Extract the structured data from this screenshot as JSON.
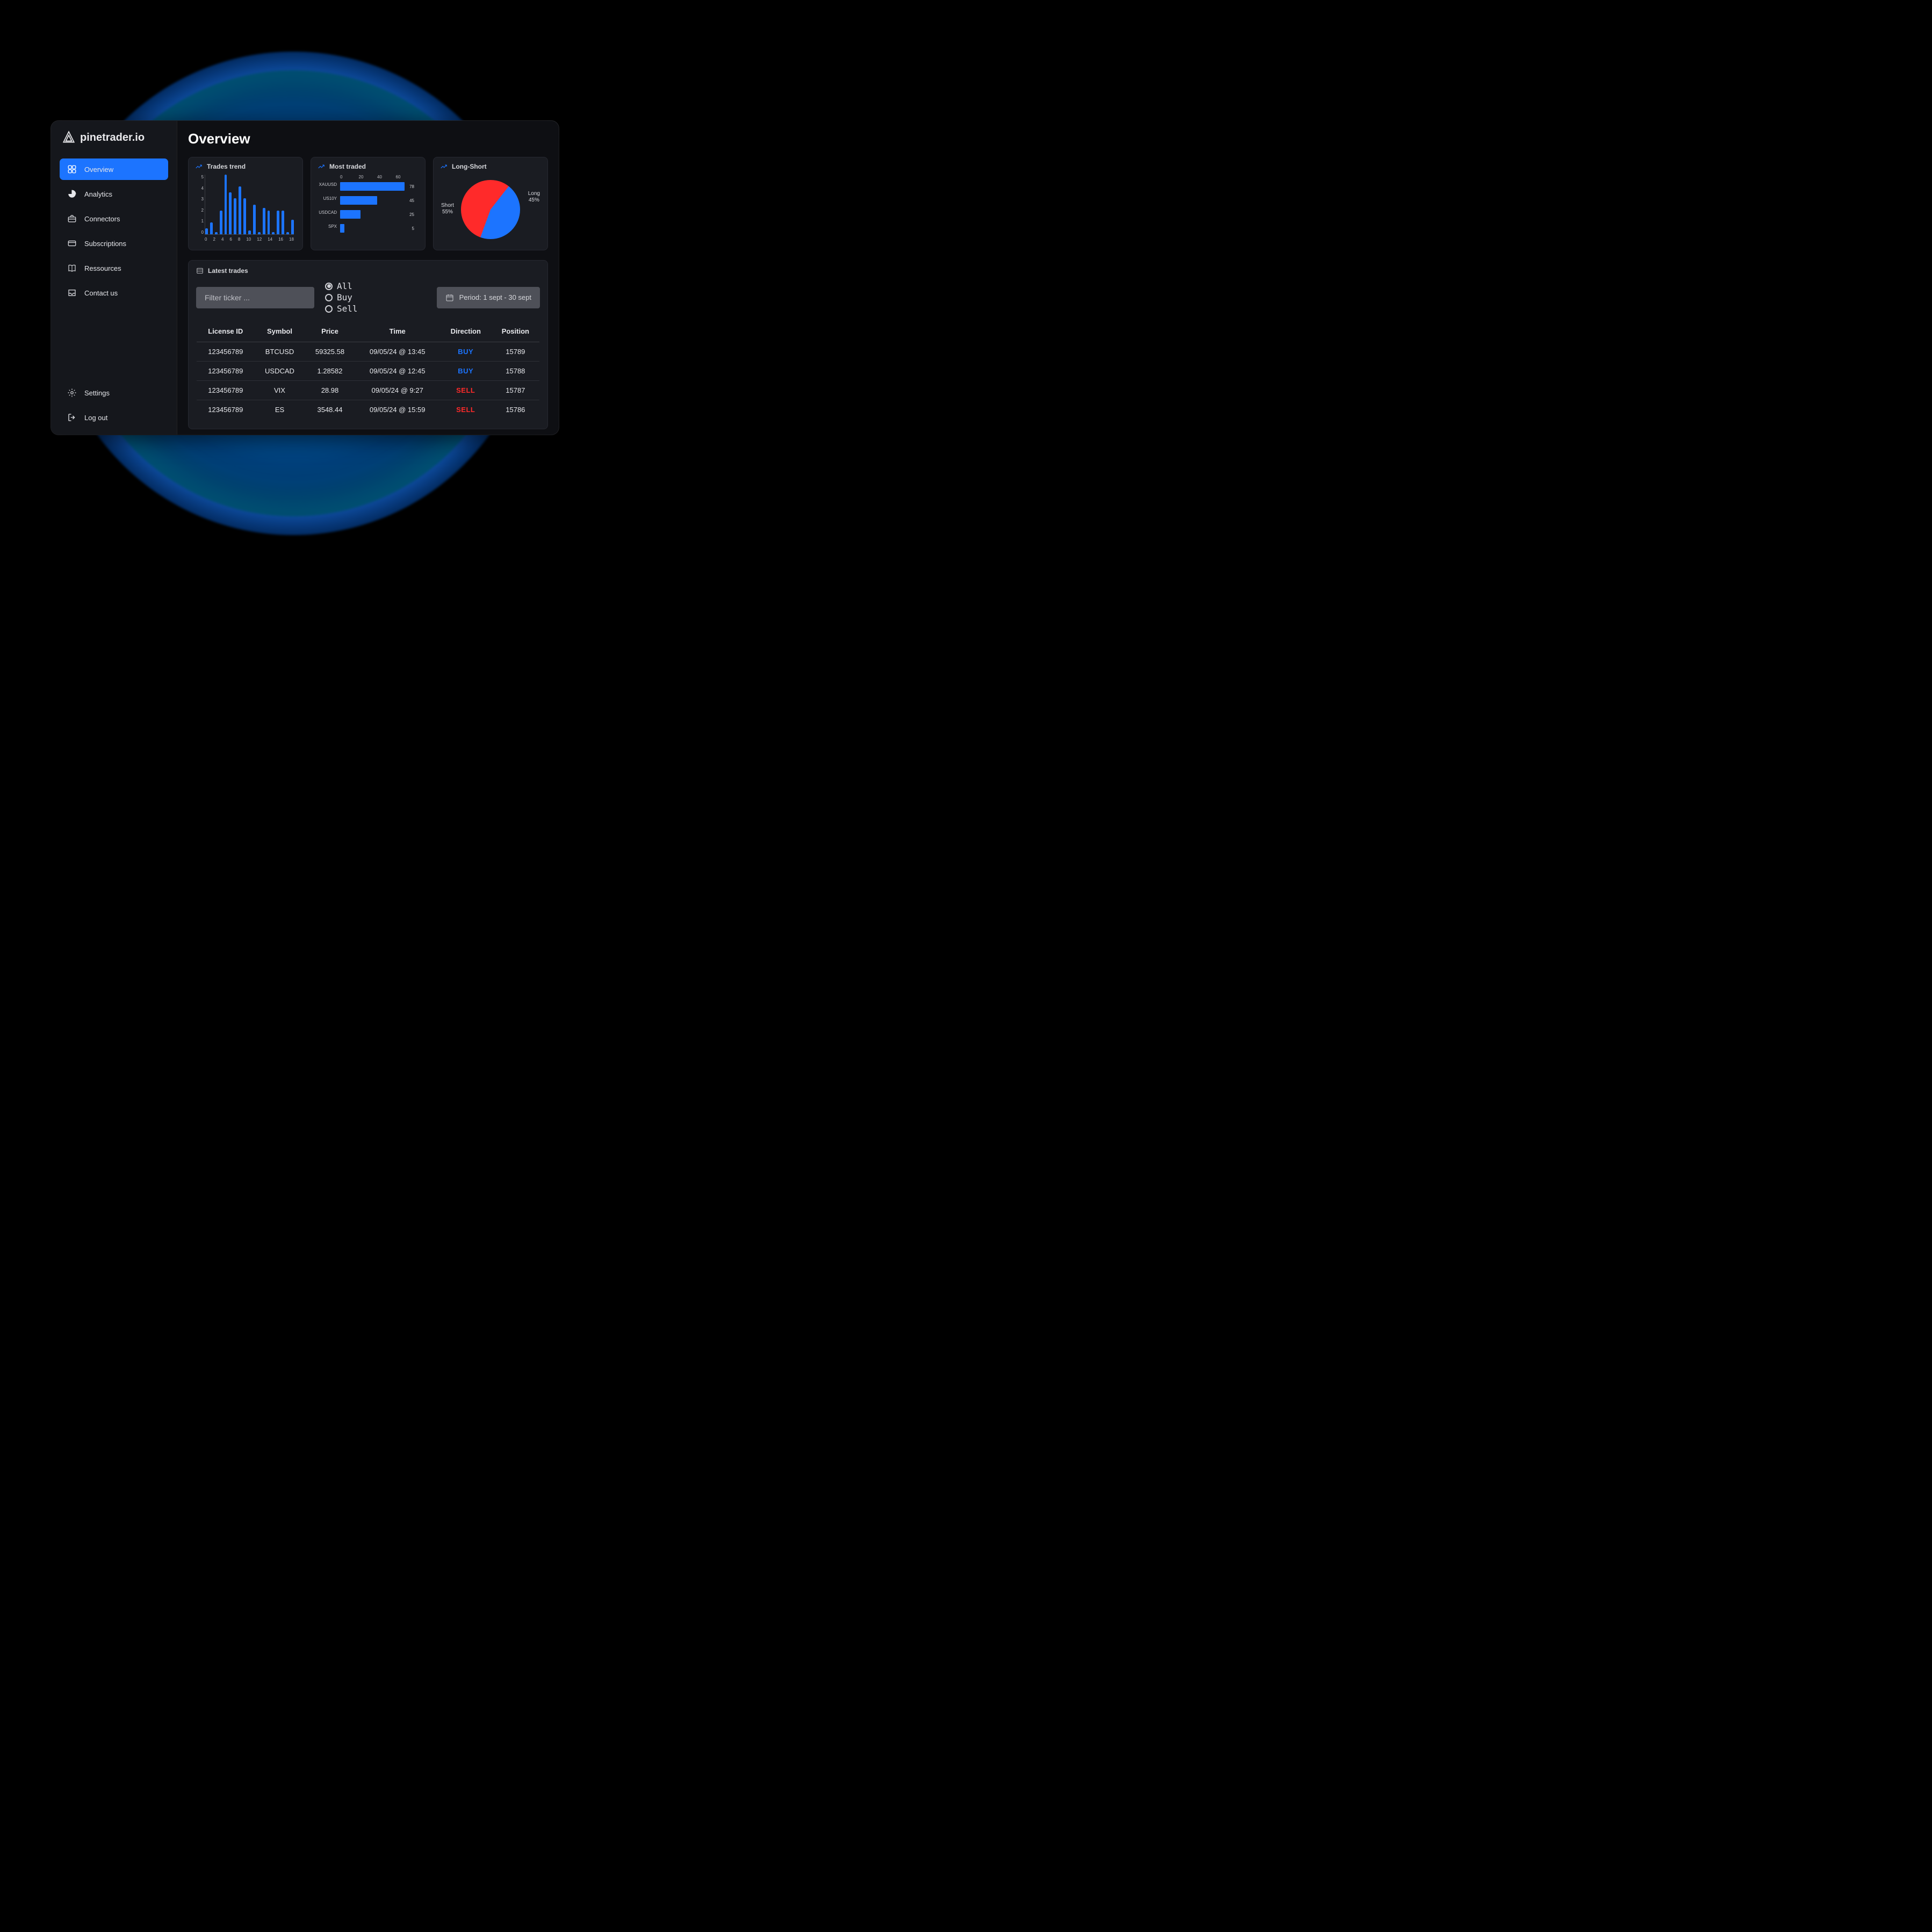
{
  "brand": {
    "name": "pinetrader.io"
  },
  "sidebar": {
    "items": [
      {
        "label": "Overview",
        "icon": "grid-icon",
        "active": true
      },
      {
        "label": "Analytics",
        "icon": "piechart-icon",
        "active": false
      },
      {
        "label": "Connectors",
        "icon": "briefcase-icon",
        "active": false
      },
      {
        "label": "Subscriptions",
        "icon": "card-icon",
        "active": false
      },
      {
        "label": "Ressources",
        "icon": "book-icon",
        "active": false
      },
      {
        "label": "Contact us",
        "icon": "inbox-icon",
        "active": false
      }
    ],
    "footer": [
      {
        "label": "Settings",
        "icon": "gear-icon"
      },
      {
        "label": "Log out",
        "icon": "logout-icon"
      }
    ]
  },
  "page": {
    "title": "Overview"
  },
  "cards": {
    "trades_trend": {
      "title": "Trades trend",
      "type": "bar",
      "y_ticks": [
        5,
        4,
        3,
        2,
        1,
        0
      ],
      "x_ticks": [
        0,
        2,
        4,
        6,
        8,
        10,
        12,
        14,
        16,
        18
      ],
      "values": [
        0.5,
        1,
        0.2,
        2,
        5,
        3.5,
        3,
        4,
        3,
        0.3,
        2.5,
        0.2,
        2.2,
        2,
        0.2,
        2,
        2,
        0.2,
        1.2
      ],
      "ymax": 5,
      "bar_color": "#1c74ff",
      "bg": "#1a1c22"
    },
    "most_traded": {
      "title": "Most traded",
      "type": "hbar",
      "top_ticks": [
        0,
        20,
        40,
        60
      ],
      "xmax": 80,
      "rows": [
        {
          "label": "XAUUSD",
          "value": 78
        },
        {
          "label": "US10Y",
          "value": 45
        },
        {
          "label": "USDCAD",
          "value": 25
        },
        {
          "label": "SPX",
          "value": 5
        }
      ],
      "bar_color": "#1c74ff"
    },
    "long_short": {
      "title": "Long-Short",
      "type": "pie",
      "slices": [
        {
          "label": "Short",
          "pct": 55,
          "color": "#ff2a2a"
        },
        {
          "label": "Long",
          "pct": 45,
          "color": "#1c74ff"
        }
      ],
      "label_left": "Short\n55%",
      "label_right": "Long\n45%"
    }
  },
  "latest_trades": {
    "title": "Latest trades",
    "filter_placeholder": "Filter ticker ...",
    "radio_options": [
      "All",
      "Buy",
      "Sell"
    ],
    "radio_selected": "All",
    "period_label": "Period: 1 sept - 30 sept",
    "columns": [
      "License ID",
      "Symbol",
      "Price",
      "Time",
      "Direction",
      "Position"
    ],
    "rows": [
      {
        "license": "123456789",
        "symbol": "BTCUSD",
        "price": "59325.58",
        "time": "09/05/24 @ 13:45",
        "direction": "BUY",
        "position": "15789"
      },
      {
        "license": "123456789",
        "symbol": "USDCAD",
        "price": "1.28582",
        "time": "09/05/24 @ 12:45",
        "direction": "BUY",
        "position": "15788"
      },
      {
        "license": "123456789",
        "symbol": "VIX",
        "price": "28.98",
        "time": "09/05/24 @ 9:27",
        "direction": "SELL",
        "position": "15787"
      },
      {
        "license": "123456789",
        "symbol": "ES",
        "price": "3548.44",
        "time": "09/05/24 @ 15:59",
        "direction": "SELL",
        "position": "15786"
      }
    ]
  },
  "colors": {
    "accent": "#1c74ff",
    "buy": "#1c74ff",
    "sell": "#ff2a2a",
    "panel": "#1a1c22",
    "text": "#e8e9ed"
  }
}
